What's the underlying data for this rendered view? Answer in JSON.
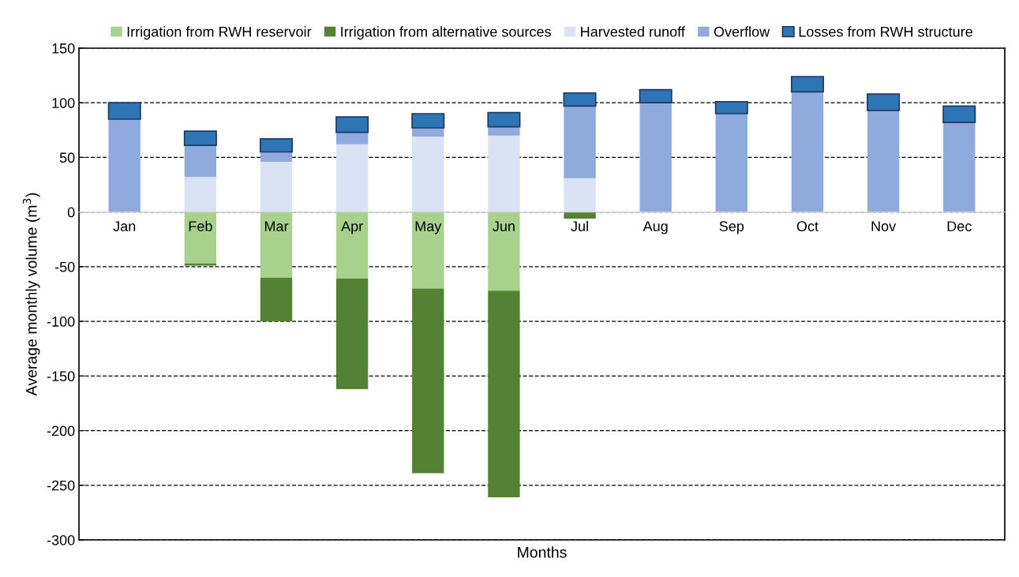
{
  "chart_data": {
    "type": "bar",
    "stacked": true,
    "xlabel": "Months",
    "ylabel": "Average monthly volume (m$^{3}$)",
    "categories": [
      "Jan",
      "Feb",
      "Mar",
      "Apr",
      "May",
      "Jun",
      "Jul",
      "Aug",
      "Sep",
      "Oct",
      "Nov",
      "Dec"
    ],
    "series": [
      {
        "name": "Irrigation from RWH reservoir",
        "color": "#a9d18e",
        "values": [
          0,
          -47,
          -60,
          -61,
          -70,
          -72,
          0,
          0,
          0,
          0,
          0,
          0
        ]
      },
      {
        "name": "Irrigation from alternative sources",
        "color": "#548235",
        "values": [
          0,
          -2,
          -40,
          -101,
          -169,
          -189,
          -6,
          0,
          0,
          0,
          0,
          0
        ]
      },
      {
        "name": "Harvested runoff",
        "color": "#dae3f3",
        "values": [
          0,
          32,
          46,
          62,
          69,
          70,
          31,
          0,
          0,
          0,
          0,
          0
        ]
      },
      {
        "name": "Overflow",
        "color": "#8faadc",
        "values": [
          85,
          29,
          9,
          11,
          8,
          8,
          66,
          100,
          90,
          110,
          93,
          82
        ]
      },
      {
        "name": "Losses from RWH structure",
        "color": "#2e75b6",
        "values": [
          15,
          13,
          12,
          14,
          13,
          13,
          12,
          12,
          11,
          14,
          15,
          15
        ]
      }
    ],
    "ylim": [
      -300,
      150
    ],
    "yticks": [
      -300,
      -250,
      -200,
      -150,
      -100,
      -50,
      0,
      50,
      100,
      150
    ],
    "grid": "y",
    "legend": "top"
  }
}
